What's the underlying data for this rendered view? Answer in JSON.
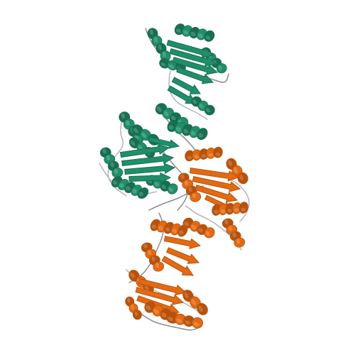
{
  "image": {
    "background": "#ffffff",
    "chains": [
      {
        "name": "chain-a",
        "color": "#1f8f6a",
        "shade": "#176f52",
        "highlight": "#3fb08a"
      },
      {
        "name": "chain-b",
        "color": "#e36a12",
        "shade": "#b9510a",
        "highlight": "#f2923f"
      }
    ],
    "loop_color": "#8c8c8c",
    "loop_color_light": "#b5b5b5"
  }
}
